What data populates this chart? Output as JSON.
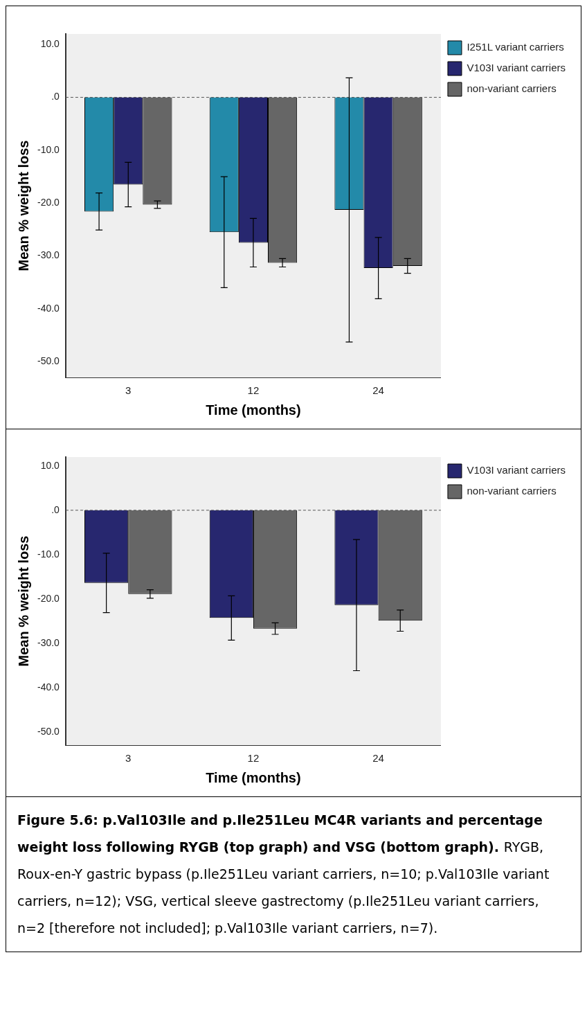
{
  "chart_data": [
    {
      "type": "bar",
      "xlabel": "Time (months)",
      "ylabel": "Mean % weight loss",
      "categories": [
        "3",
        "12",
        "24"
      ],
      "series": [
        {
          "name": "I251L variant carriers",
          "color": "#238aa9",
          "values": [
            -21.6,
            -25.5,
            -21.3
          ],
          "errors": [
            3.5,
            10.5,
            25.0
          ]
        },
        {
          "name": "V103I variant carriers",
          "color": "#27276f",
          "values": [
            -16.5,
            -27.5,
            -32.3
          ],
          "errors": [
            4.2,
            4.6,
            5.8
          ]
        },
        {
          "name": "non-variant carriers",
          "color": "#666666",
          "values": [
            -20.3,
            -31.3,
            -31.9
          ],
          "errors": [
            0.7,
            0.8,
            1.4
          ]
        }
      ],
      "ylim": [
        -53,
        12
      ],
      "yticks": [
        {
          "value": 10,
          "label": "10.0"
        },
        {
          "value": 0,
          "label": ".0"
        },
        {
          "value": -10,
          "label": "-10.0"
        },
        {
          "value": -20,
          "label": "-20.0"
        },
        {
          "value": -30,
          "label": "-30.0"
        },
        {
          "value": -40,
          "label": "-40.0"
        },
        {
          "value": -50,
          "label": "-50.0"
        }
      ],
      "ref_lines": [
        {
          "axis": "y",
          "value": 0,
          "line_style": "dashed"
        }
      ],
      "grid": false,
      "legend": "top right"
    },
    {
      "type": "bar",
      "xlabel": "Time (months)",
      "ylabel": "Mean % weight loss",
      "categories": [
        "3",
        "12",
        "24"
      ],
      "series": [
        {
          "name": "V103I variant carriers",
          "color": "#27276f",
          "values": [
            -16.4,
            -24.3,
            -21.4
          ],
          "errors": [
            6.7,
            5.0,
            14.8
          ]
        },
        {
          "name": "non-variant carriers",
          "color": "#666666",
          "values": [
            -18.9,
            -26.7,
            -24.9
          ],
          "errors": [
            0.95,
            1.3,
            2.4
          ]
        }
      ],
      "ylim": [
        -53,
        12
      ],
      "yticks": [
        {
          "value": 10,
          "label": "10.0"
        },
        {
          "value": 0,
          "label": ".0"
        },
        {
          "value": -10,
          "label": "-10.0"
        },
        {
          "value": -20,
          "label": "-20.0"
        },
        {
          "value": -30,
          "label": "-30.0"
        },
        {
          "value": -40,
          "label": "-40.0"
        },
        {
          "value": -50,
          "label": "-50.0"
        }
      ],
      "ref_lines": [
        {
          "axis": "y",
          "value": 0,
          "line_style": "dashed"
        }
      ],
      "grid": false,
      "legend": "top right",
      "annotations": [
        "Figure 5.6: p.Val103Ile and p.Ile251Leu MC4R variants and percentage weight loss following RYGB (top graph) and VSG (bottom graph).",
        "RYGB, Roux-en-Y gastric bypass (p.Ile251Leu variant carriers, n=10; p.Val103Ile variant carriers, n=12); VSG, vertical sleeve gastrectomy (p.Ile251Leu variant carriers, n=2 [therefore not included]; p.Val103Ile variant carriers, n=7)."
      ]
    }
  ]
}
